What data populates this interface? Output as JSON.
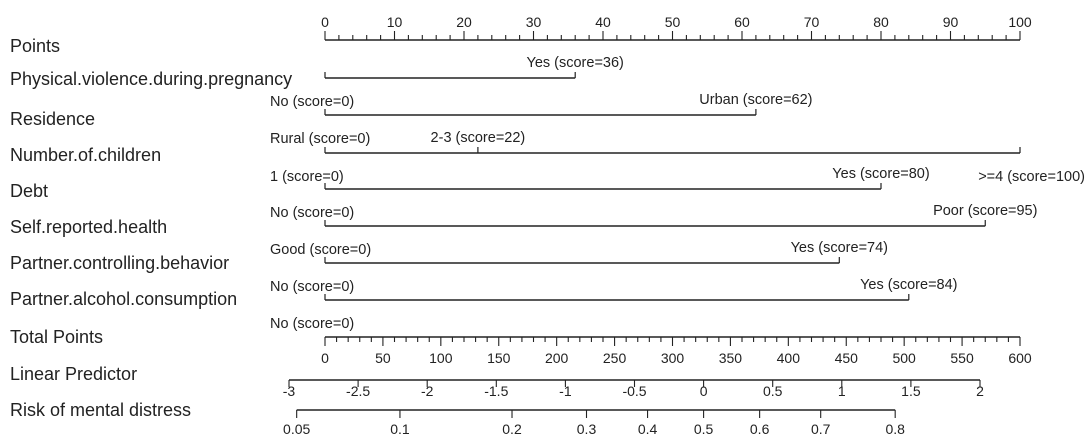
{
  "chart_data": {
    "type": "nomogram",
    "points_axis": {
      "label": "Points",
      "range": [
        0,
        100
      ],
      "major_ticks": [
        0,
        10,
        20,
        30,
        40,
        50,
        60,
        70,
        80,
        90,
        100
      ],
      "minor_step": 2
    },
    "variables": [
      {
        "name": "Physical.violence.during.pregnancy",
        "levels": [
          {
            "label": "No (score=0)",
            "score": 0
          },
          {
            "label": "Yes (score=36)",
            "score": 36
          }
        ]
      },
      {
        "name": "Residence",
        "levels": [
          {
            "label": "Rural (score=0)",
            "score": 0
          },
          {
            "label": "Urban (score=62)",
            "score": 62
          }
        ]
      },
      {
        "name": "Number.of.children",
        "levels": [
          {
            "label": "1 (score=0)",
            "score": 0
          },
          {
            "label": "2-3 (score=22)",
            "score": 22
          },
          {
            "label": ">=4 (score=100)",
            "score": 100
          }
        ]
      },
      {
        "name": "Debt",
        "levels": [
          {
            "label": "No (score=0)",
            "score": 0
          },
          {
            "label": "Yes (score=80)",
            "score": 80
          }
        ]
      },
      {
        "name": "Self.reported.health",
        "levels": [
          {
            "label": "Good (score=0)",
            "score": 0
          },
          {
            "label": "Poor (score=95)",
            "score": 95
          }
        ]
      },
      {
        "name": "Partner.controlling.behavior",
        "levels": [
          {
            "label": "No (score=0)",
            "score": 0
          },
          {
            "label": "Yes (score=74)",
            "score": 74
          }
        ]
      },
      {
        "name": "Partner.alcohol.consumption",
        "levels": [
          {
            "label": "No (score=0)",
            "score": 0
          },
          {
            "label": "Yes (score=84)",
            "score": 84
          }
        ]
      }
    ],
    "total_points_axis": {
      "label": "Total Points",
      "range": [
        0,
        600
      ],
      "major_ticks": [
        0,
        50,
        100,
        150,
        200,
        250,
        300,
        350,
        400,
        450,
        500,
        550,
        600
      ],
      "minor_step": 10
    },
    "linear_predictor_axis": {
      "label": "Linear Predictor",
      "ticks": [
        {
          "label": "-3",
          "value": -3
        },
        {
          "label": "-2.5",
          "value": -2.5
        },
        {
          "label": "-2",
          "value": -2
        },
        {
          "label": "-1.5",
          "value": -1.5
        },
        {
          "label": "-1",
          "value": -1
        },
        {
          "label": "-0.5",
          "value": -0.5
        },
        {
          "label": "0",
          "value": 0
        },
        {
          "label": "0.5",
          "value": 0.5
        },
        {
          "label": "1",
          "value": 1
        },
        {
          "label": "1.5",
          "value": 1.5
        },
        {
          "label": "2",
          "value": 2
        }
      ]
    },
    "risk_axis": {
      "label": "Risk of mental distress",
      "ticks": [
        {
          "label": "0.05",
          "value": 0.05
        },
        {
          "label": "0.1",
          "value": 0.1
        },
        {
          "label": "0.2",
          "value": 0.2
        },
        {
          "label": "0.3",
          "value": 0.3
        },
        {
          "label": "0.4",
          "value": 0.4
        },
        {
          "label": "0.5",
          "value": 0.5
        },
        {
          "label": "0.6",
          "value": 0.6
        },
        {
          "label": "0.7",
          "value": 0.7
        },
        {
          "label": "0.8",
          "value": 0.8
        }
      ]
    },
    "line_color": "#222222"
  }
}
